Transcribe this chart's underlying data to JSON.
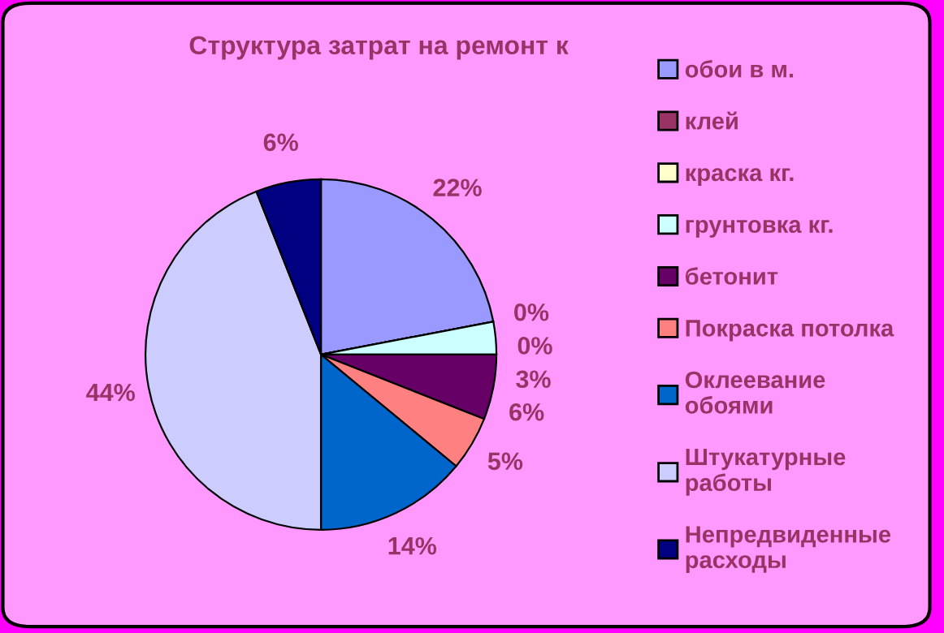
{
  "chart_data": {
    "type": "pie",
    "title": "Структура затрат на ремонт к",
    "categories": [
      "обои в м.",
      "клей",
      "краска кг.",
      "грунтовка кг.",
      "бетонит",
      "Покраска потолка",
      "Оклеевание обоями",
      "Штукатурные работы",
      "Непредвиденные расходы"
    ],
    "values": [
      22,
      0,
      0,
      3,
      6,
      5,
      14,
      44,
      6
    ],
    "value_labels": [
      "22%",
      "0%",
      "0%",
      "3%",
      "6%",
      "5%",
      "14%",
      "44%",
      "6%"
    ],
    "colors": [
      "#9999ff",
      "#993366",
      "#ffffcc",
      "#ccffff",
      "#660066",
      "#ff8080",
      "#0066cc",
      "#ccccff",
      "#000080"
    ],
    "legend": "right"
  }
}
